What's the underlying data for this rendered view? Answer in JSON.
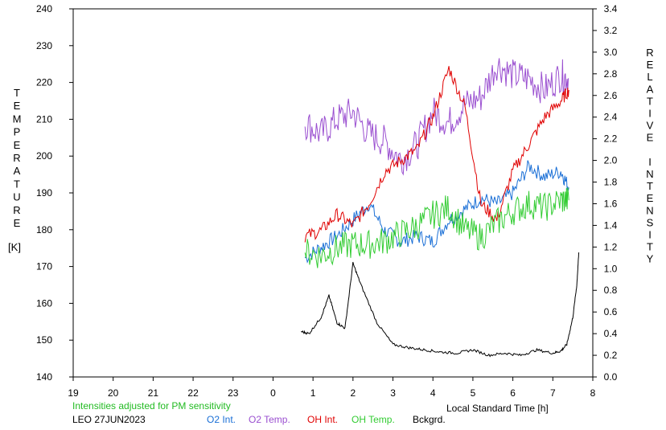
{
  "chart_data": {
    "type": "line",
    "left_axis": {
      "label": "TEMPERATURE",
      "unit": "[K]",
      "range": [
        140,
        240
      ],
      "ticks": [
        "140",
        "150",
        "160",
        "170",
        "180",
        "190",
        "200",
        "210",
        "220",
        "230",
        "240"
      ]
    },
    "right_axis": {
      "label": "RELATIVE INTENSITY",
      "range": [
        0.0,
        3.4
      ],
      "ticks": [
        "0.0",
        "0.2",
        "0.4",
        "0.6",
        "0.8",
        "1.0",
        "1.2",
        "1.4",
        "1.6",
        "1.8",
        "2.0",
        "2.2",
        "2.4",
        "2.6",
        "2.8",
        "3.0",
        "3.2",
        "3.4"
      ]
    },
    "x_axis": {
      "label": "Local Standard Time [h]",
      "range": [
        19,
        32
      ],
      "ticks": [
        "19",
        "20",
        "21",
        "22",
        "23",
        "0",
        "1",
        "2",
        "3",
        "4",
        "5",
        "6",
        "7",
        "8"
      ]
    },
    "note": "Intensities adjusted for PM sensitivity",
    "station": "LEO 27JUN2023",
    "series": [
      {
        "name": "O2 Int.",
        "axis": "right",
        "color": "#1a6fd6",
        "x": [
          24.8,
          25.2,
          25.6,
          26.0,
          26.4,
          26.8,
          27.2,
          27.6,
          28.0,
          28.4,
          28.8,
          29.2,
          29.6,
          30.0,
          30.4,
          30.8,
          31.2,
          31.4
        ],
        "y": [
          1.1,
          1.2,
          1.3,
          1.45,
          1.6,
          1.35,
          1.25,
          1.3,
          1.25,
          1.45,
          1.55,
          1.65,
          1.6,
          1.7,
          1.95,
          1.85,
          1.9,
          1.75
        ]
      },
      {
        "name": "O2 Temp.",
        "axis": "left",
        "color": "#9a4fd0",
        "x": [
          24.8,
          25.2,
          25.6,
          26.0,
          26.4,
          26.8,
          27.2,
          27.6,
          28.0,
          28.4,
          28.8,
          29.2,
          29.6,
          30.0,
          30.4,
          30.8,
          31.2,
          31.4
        ],
        "y": [
          209,
          206,
          210,
          212,
          206,
          204,
          199,
          203,
          212,
          209,
          214,
          216,
          225,
          222,
          221,
          218,
          222,
          221
        ]
      },
      {
        "name": "OH Int.",
        "axis": "right",
        "color": "#e00000",
        "x": [
          24.8,
          25.2,
          25.6,
          26.0,
          26.4,
          26.8,
          27.2,
          27.6,
          28.0,
          28.4,
          28.8,
          29.2,
          29.6,
          30.0,
          30.4,
          30.8,
          31.2,
          31.4
        ],
        "y": [
          1.3,
          1.35,
          1.5,
          1.4,
          1.6,
          1.9,
          2.0,
          2.1,
          2.4,
          2.85,
          2.5,
          1.6,
          1.45,
          1.9,
          2.15,
          2.4,
          2.55,
          2.65
        ]
      },
      {
        "name": "OH Temp.",
        "axis": "left",
        "color": "#33cc33",
        "x": [
          24.8,
          25.2,
          25.6,
          26.0,
          26.4,
          26.8,
          27.2,
          27.6,
          28.0,
          28.4,
          28.8,
          29.2,
          29.6,
          30.0,
          30.4,
          30.8,
          31.2,
          31.4
        ],
        "y": [
          174,
          173,
          175,
          176,
          176,
          177,
          179,
          181,
          184,
          186,
          180,
          178,
          182,
          185,
          187,
          186,
          188,
          188
        ]
      },
      {
        "name": "Bckgrd.",
        "axis": "right",
        "color": "#000000",
        "x": [
          24.7,
          24.9,
          25.2,
          25.4,
          25.6,
          25.8,
          26.0,
          26.2,
          26.6,
          27.0,
          27.4,
          27.8,
          28.2,
          28.6,
          29.0,
          29.4,
          29.8,
          30.2,
          30.6,
          31.0,
          31.2,
          31.35,
          31.5,
          31.6,
          31.65
        ],
        "y": [
          0.42,
          0.4,
          0.55,
          0.75,
          0.5,
          0.45,
          1.05,
          0.85,
          0.5,
          0.3,
          0.27,
          0.25,
          0.23,
          0.22,
          0.25,
          0.2,
          0.22,
          0.2,
          0.25,
          0.22,
          0.24,
          0.3,
          0.55,
          0.85,
          1.15
        ]
      }
    ],
    "legend_placement": "bottom",
    "grid": false
  },
  "colors": {
    "note": "#22bb22",
    "axis": "#000000"
  }
}
